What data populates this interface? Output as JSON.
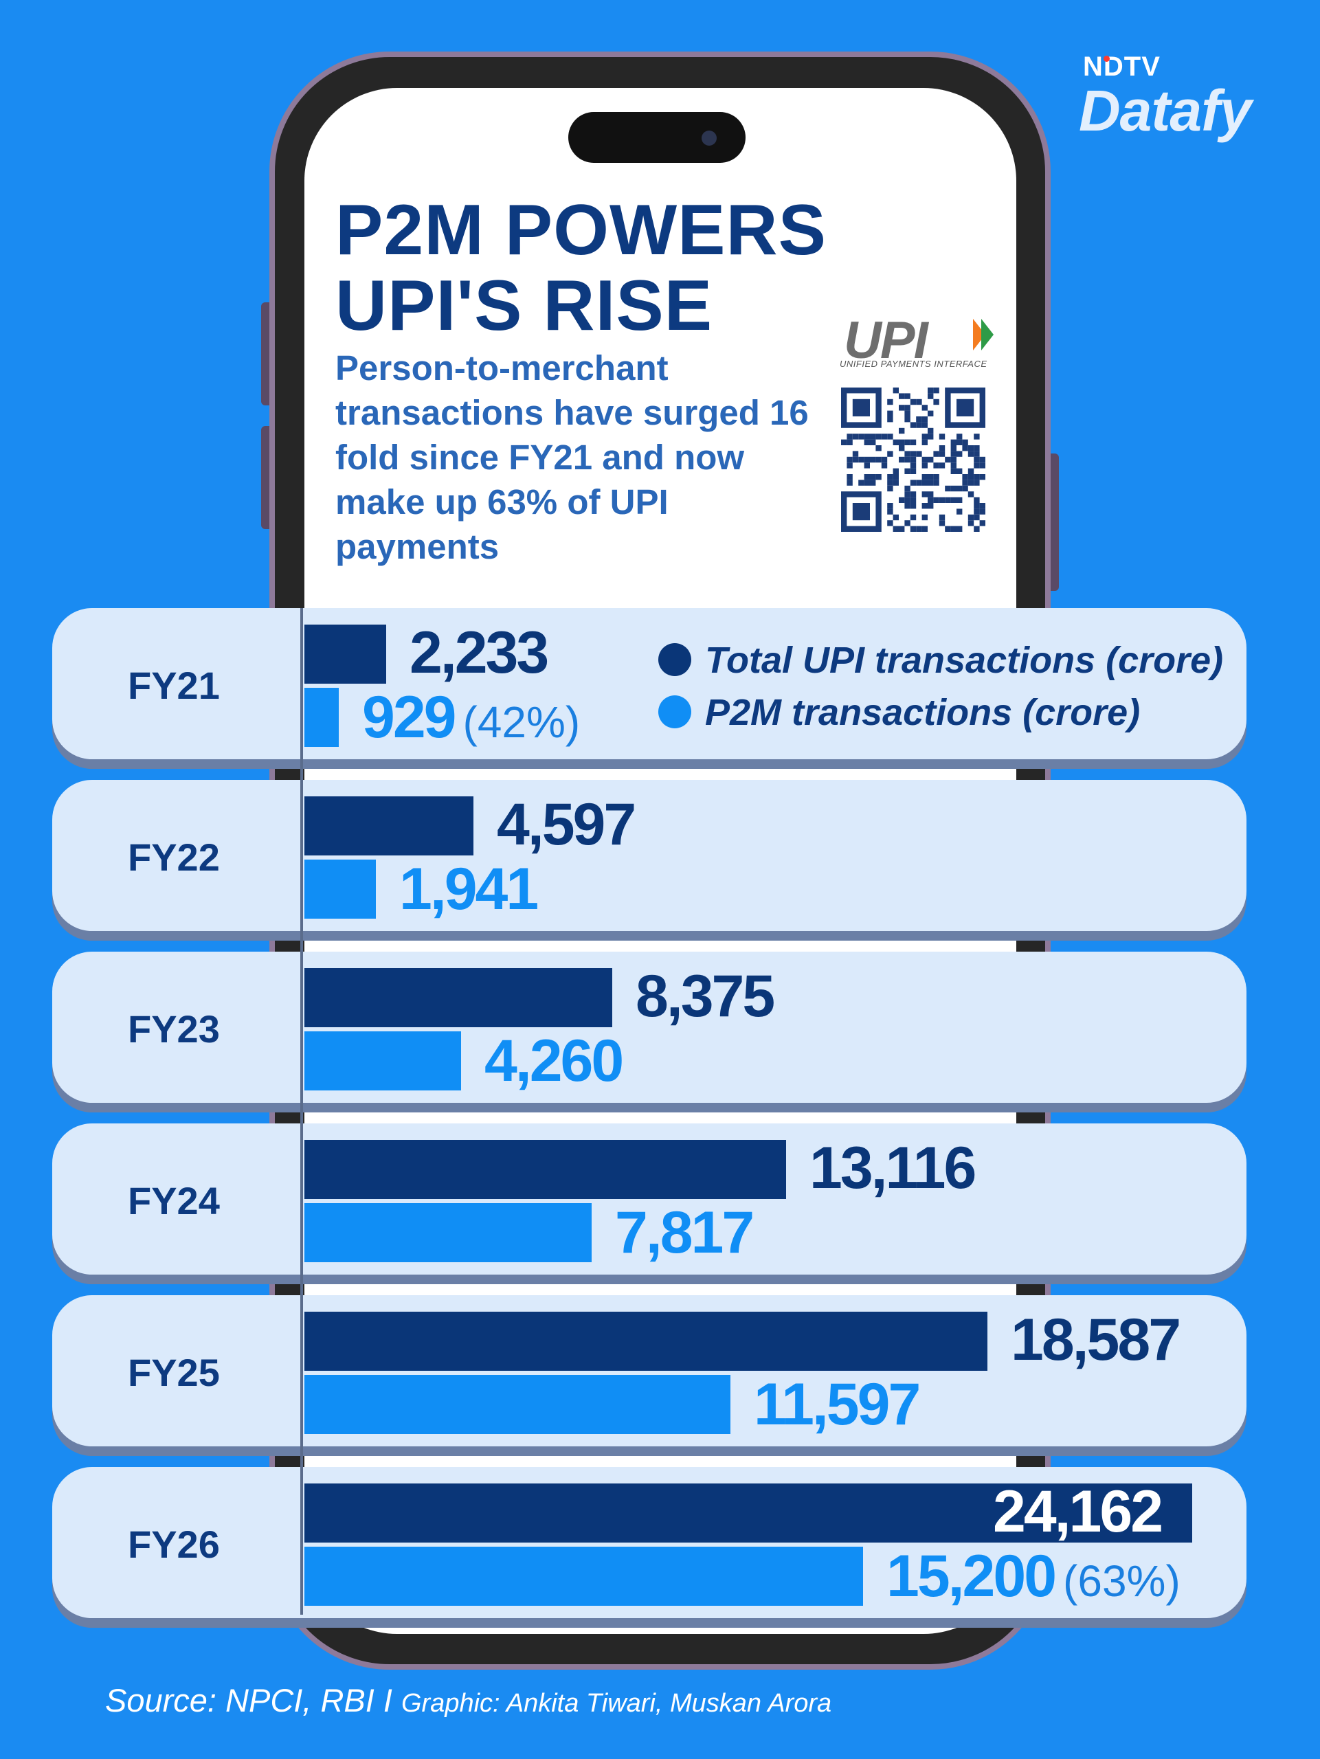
{
  "brand": {
    "top": "NDTV",
    "main": "Datafy"
  },
  "title_line1": "P2M POWERS",
  "title_line2": "UPI'S RISE",
  "subtitle": "Person-to-merchant transactions have surged 16 fold since FY21 and now make up 63% of UPI payments",
  "upi_logo": {
    "text": "UPI",
    "subtext": "UNIFIED PAYMENTS INTERFACE"
  },
  "icons": {
    "qr": "qr-code-icon",
    "upi_arrow": "upi-arrow-icon"
  },
  "colors": {
    "background": "#1a8bf2",
    "total": "#0a3678",
    "p2m": "#108ef5",
    "panel": "#dbeafb",
    "title": "#0d3a80"
  },
  "chart_data": {
    "type": "bar",
    "orientation": "horizontal",
    "categories": [
      "FY21",
      "FY22",
      "FY23",
      "FY24",
      "FY25",
      "FY26"
    ],
    "series": [
      {
        "name": "Total UPI transactions (crore)",
        "values": [
          2233,
          4597,
          8375,
          13116,
          18587,
          24162
        ],
        "labels": [
          "2,233",
          "4,597",
          "8,375",
          "13,116",
          "18,587",
          "24,162"
        ]
      },
      {
        "name": "P2M transactions (crore)",
        "values": [
          929,
          1941,
          4260,
          7817,
          11597,
          15200
        ],
        "labels": [
          "929",
          "1,941",
          "4,260",
          "7,817",
          "11,597",
          "15,200"
        ]
      }
    ],
    "annotations": [
      {
        "category": "FY21",
        "series": "P2M transactions (crore)",
        "text": "(42%)"
      },
      {
        "category": "FY26",
        "series": "P2M transactions (crore)",
        "text": "(63%)"
      }
    ],
    "title": "P2M POWERS UPI'S RISE",
    "xlim": [
      0,
      24162
    ],
    "legend": "top-right",
    "grid": false
  },
  "source": {
    "main": "Source: NPCI, RBI I",
    "graphic": "Graphic: Ankita Tiwari, Muskan Arora"
  }
}
